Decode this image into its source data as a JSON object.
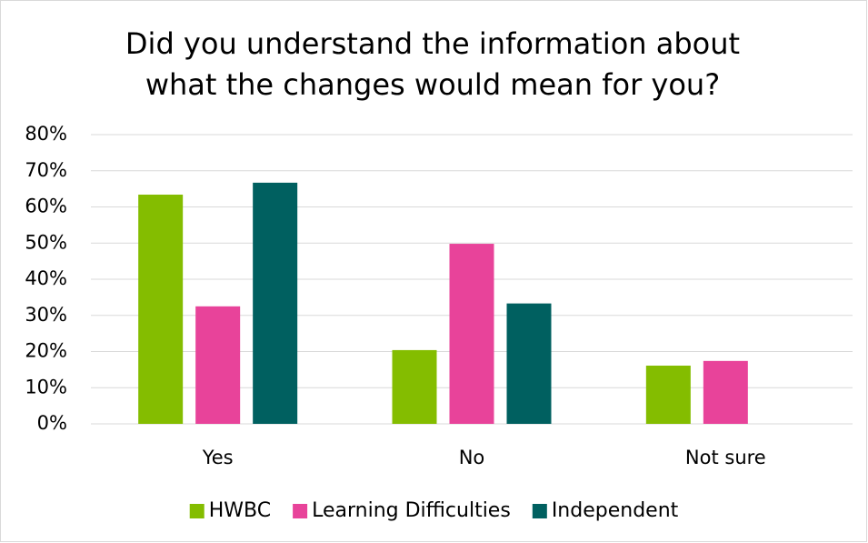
{
  "chart_data": {
    "type": "bar",
    "title": [
      "Did you understand the information about",
      "what the changes would mean for you?"
    ],
    "categories": [
      "Yes",
      "No",
      "Not sure"
    ],
    "series": [
      {
        "name": "HWBC",
        "color": "#84bd00",
        "values": [
          63.4,
          20.4,
          16.1
        ]
      },
      {
        "name": "Learning Difficulties",
        "color": "#e8439a",
        "values": [
          32.5,
          49.8,
          17.4
        ]
      },
      {
        "name": "Independent",
        "color": "#006060",
        "values": [
          66.7,
          33.3,
          null
        ]
      }
    ],
    "ylim": [
      0,
      80
    ],
    "yticks": [
      {
        "value": 0,
        "label": "0%"
      },
      {
        "value": 10,
        "label": "10%"
      },
      {
        "value": 20,
        "label": "20%"
      },
      {
        "value": 30,
        "label": "30%"
      },
      {
        "value": 40,
        "label": "40%"
      },
      {
        "value": 50,
        "label": "50%"
      },
      {
        "value": 60,
        "label": "60%"
      },
      {
        "value": 70,
        "label": "70%"
      },
      {
        "value": 80,
        "label": "80%"
      }
    ],
    "grid": true,
    "legend": "bottom"
  }
}
